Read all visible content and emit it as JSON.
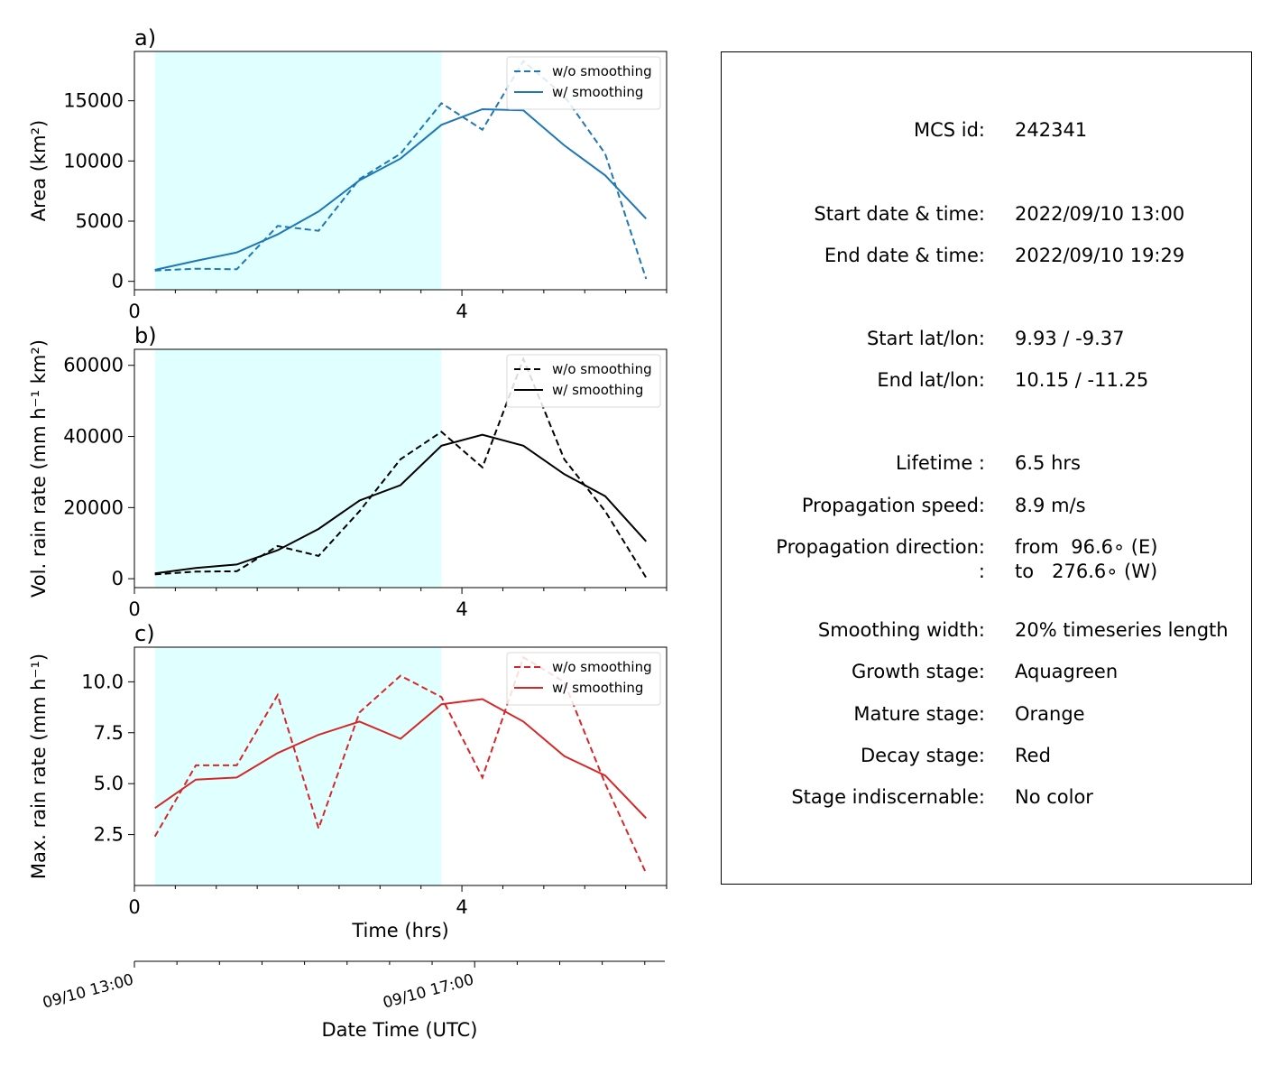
{
  "figure": {
    "time_xlabel": "Time (hrs)",
    "datetime_xlabel": "Date Time (UTC)",
    "datetime_ticks": [
      {
        "t": 0,
        "label": "09/10 13:00"
      },
      {
        "t": 4,
        "label": "09/10 17:00"
      }
    ],
    "growth_stage_hours": [
      0.25,
      3.75
    ],
    "growth_stage_color": "#e0ffff"
  },
  "chart_data": [
    {
      "panel_label": "a)",
      "type": "line",
      "ylabel": "Area  (km²)",
      "xlim": [
        0,
        6.5
      ],
      "ylim": [
        -700,
        19100
      ],
      "xticks": [
        0,
        4
      ],
      "yticks": [
        0,
        5000,
        10000,
        15000
      ],
      "ytick_labels": [
        "0",
        "5000",
        "10000",
        "15000"
      ],
      "color": "#1f77b4",
      "x": [
        0.25,
        0.75,
        1.25,
        1.75,
        2.25,
        2.75,
        3.25,
        3.75,
        4.25,
        4.75,
        5.25,
        5.75,
        6.25
      ],
      "series": [
        {
          "name": "w/o smoothing",
          "style": "dashed",
          "values": [
            900,
            1050,
            1000,
            4600,
            4200,
            8500,
            10600,
            14800,
            12600,
            18300,
            15400,
            10600,
            200
          ]
        },
        {
          "name": "w/ smoothing",
          "style": "solid",
          "values": [
            950,
            1700,
            2400,
            3900,
            5800,
            8400,
            10200,
            13000,
            14300,
            14200,
            11300,
            8800,
            5200
          ]
        }
      ],
      "legend": "upper right"
    },
    {
      "panel_label": "b)",
      "type": "line",
      "ylabel": "Vol. rain rate (mm h⁻¹ km²)",
      "xlim": [
        0,
        6.5
      ],
      "ylim": [
        -2500,
        64500
      ],
      "xticks": [
        0,
        4
      ],
      "yticks": [
        0,
        20000,
        40000,
        60000
      ],
      "ytick_labels": [
        "0",
        "20000",
        "40000",
        "60000"
      ],
      "color": "#000000",
      "x": [
        0.25,
        0.75,
        1.25,
        1.75,
        2.25,
        2.75,
        3.25,
        3.75,
        4.25,
        4.75,
        5.25,
        5.75,
        6.25
      ],
      "series": [
        {
          "name": "w/o smoothing",
          "style": "dashed",
          "values": [
            1200,
            2000,
            2100,
            9200,
            6400,
            19000,
            33600,
            41300,
            31300,
            61800,
            33600,
            19000,
            300
          ]
        },
        {
          "name": "w/ smoothing",
          "style": "solid",
          "values": [
            1500,
            3000,
            4000,
            8000,
            14000,
            22000,
            26300,
            37400,
            40500,
            37400,
            29400,
            23200,
            10500
          ]
        }
      ],
      "legend": "upper right"
    },
    {
      "panel_label": "c)",
      "type": "line",
      "ylabel": "Max. rain rate  (mm h⁻¹)",
      "xlim": [
        0,
        6.5
      ],
      "ylim": [
        0,
        11.7
      ],
      "xticks": [
        0,
        4
      ],
      "yticks": [
        2.5,
        5.0,
        7.5,
        10.0
      ],
      "ytick_labels": [
        "2.5",
        "5.0",
        "7.5",
        "10.0"
      ],
      "color": "#d62728",
      "x": [
        0.25,
        0.75,
        1.25,
        1.75,
        2.25,
        2.75,
        3.25,
        3.75,
        4.25,
        4.75,
        5.25,
        5.75,
        6.25
      ],
      "series": [
        {
          "name": "w/o smoothing",
          "style": "dashed",
          "values": [
            2.4,
            5.9,
            5.9,
            9.35,
            2.8,
            8.5,
            10.3,
            9.25,
            5.3,
            11.2,
            10.0,
            5.0,
            0.6
          ]
        },
        {
          "name": "w/ smoothing",
          "style": "solid",
          "values": [
            3.8,
            5.2,
            5.3,
            6.5,
            7.4,
            8.05,
            7.2,
            8.9,
            9.15,
            8.05,
            6.35,
            5.4,
            3.3
          ]
        }
      ],
      "legend": "upper right"
    }
  ],
  "info": {
    "rows": [
      {
        "label": "MCS id:",
        "value": "242341"
      },
      {
        "label": "Start date & time:",
        "value": "2022/09/10 13:00"
      },
      {
        "label": "End date & time:",
        "value": "2022/09/10 19:29"
      },
      {
        "label": "Start lat/lon:",
        "value": "9.93 / -9.37"
      },
      {
        "label": "End lat/lon:",
        "value": "10.15 / -11.25"
      },
      {
        "label": "Lifetime :",
        "value": "6.5 hrs"
      },
      {
        "label": "Propagation speed:",
        "value": "8.9 m/s"
      },
      {
        "label": "Propagation direction:",
        "value": "from  96.6∘ (E)"
      },
      {
        "label": ":",
        "value": "to   276.6∘ (W)"
      },
      {
        "label": "Smoothing width:",
        "value": "20% timeseries length"
      },
      {
        "label": "Growth stage:",
        "value": "Aquagreen"
      },
      {
        "label": "Mature stage:",
        "value": "Orange"
      },
      {
        "label": "Decay stage:",
        "value": "Red"
      },
      {
        "label": "Stage indiscernable:",
        "value": "No color"
      }
    ]
  }
}
